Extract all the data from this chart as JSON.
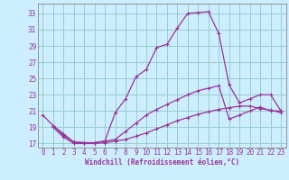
{
  "xlabel": "Windchill (Refroidissement éolien,°C)",
  "bg_color": "#cceeff",
  "line_color": "#993399",
  "grid_color": "#99cccc",
  "xlim": [
    -0.5,
    23.5
  ],
  "ylim": [
    16.5,
    34.2
  ],
  "yticks": [
    17,
    19,
    21,
    23,
    25,
    27,
    29,
    31,
    33
  ],
  "xticks": [
    0,
    1,
    2,
    3,
    4,
    5,
    6,
    7,
    8,
    9,
    10,
    11,
    12,
    13,
    14,
    15,
    16,
    17,
    18,
    19,
    20,
    21,
    22,
    23
  ],
  "curve1_x": [
    0,
    1,
    2,
    3,
    4,
    5,
    6,
    7,
    8,
    9,
    10,
    11,
    12,
    13,
    14,
    15,
    16,
    17,
    18,
    19,
    20,
    21,
    22,
    23
  ],
  "curve1_y": [
    20.5,
    19.2,
    18.2,
    17.2,
    17.1,
    17.1,
    17.3,
    20.8,
    22.5,
    25.2,
    26.1,
    28.8,
    29.2,
    31.2,
    33.0,
    33.1,
    33.2,
    30.5,
    24.2,
    22.0,
    22.5,
    23.0,
    23.0,
    21.0
  ],
  "curve2_x": [
    1,
    2,
    3,
    4,
    5,
    6,
    7,
    8,
    9,
    10,
    11,
    12,
    13,
    14,
    15,
    16,
    17,
    18,
    19,
    20,
    21,
    22,
    23
  ],
  "curve2_y": [
    19.2,
    18.0,
    17.2,
    17.1,
    17.1,
    17.3,
    17.5,
    18.5,
    19.5,
    20.5,
    21.2,
    21.8,
    22.4,
    23.0,
    23.5,
    23.8,
    24.1,
    20.0,
    20.5,
    21.0,
    21.5,
    21.0,
    21.0
  ],
  "curve3_x": [
    1,
    2,
    3,
    4,
    5,
    6,
    7,
    8,
    9,
    10,
    11,
    12,
    13,
    14,
    15,
    16,
    17,
    18,
    19,
    20,
    21,
    22,
    23
  ],
  "curve3_y": [
    19.0,
    17.8,
    17.0,
    17.0,
    17.0,
    17.1,
    17.3,
    17.5,
    17.9,
    18.3,
    18.8,
    19.3,
    19.8,
    20.2,
    20.6,
    20.9,
    21.2,
    21.4,
    21.6,
    21.6,
    21.3,
    21.1,
    20.8
  ],
  "xlabel_fontsize": 5.5,
  "tick_fontsize": 5.5,
  "lw": 0.9,
  "ms": 2.5
}
